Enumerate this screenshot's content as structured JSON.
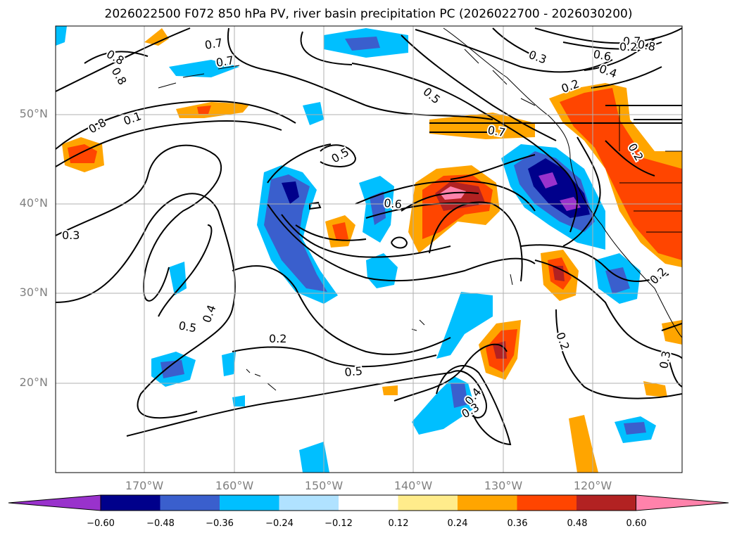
{
  "title": "2026022500 F072 850 hPa PV, river basin precipitation PC (2026022700 - 2026030200)",
  "lat_labels": [
    "50°N",
    "40°N",
    "30°N",
    "20°N"
  ],
  "lon_labels": [
    "170°W",
    "160°W",
    "150°W",
    "140°W",
    "130°W",
    "120°W"
  ],
  "colorbar": {
    "ticks": [
      "−0.60",
      "−0.48",
      "−0.36",
      "−0.24",
      "−0.12",
      "0.12",
      "0.24",
      "0.36",
      "0.48",
      "0.60"
    ],
    "colors": [
      "#9932cc",
      "#00008b",
      "#3a5fcd",
      "#00bfff",
      "#b0e2ff",
      "#ffffff",
      "#ffec8b",
      "#ffa500",
      "#ff4500",
      "#b22222",
      "#ff82ab"
    ]
  },
  "contour_labels": [
    "0.7",
    "0.8",
    "0.8",
    "0.7",
    "0.1",
    "0.8",
    "0.3",
    "0.5",
    "0.6",
    "0.5",
    "0.5",
    "0.7",
    "0.3",
    "0.2",
    "0.6",
    "0.4",
    "0.7",
    "0.8",
    "0.2",
    "0.4",
    "0.5",
    "0.2",
    "0.2",
    "0.2",
    "0.4",
    "0.3",
    "0.3",
    "0.2"
  ]
}
